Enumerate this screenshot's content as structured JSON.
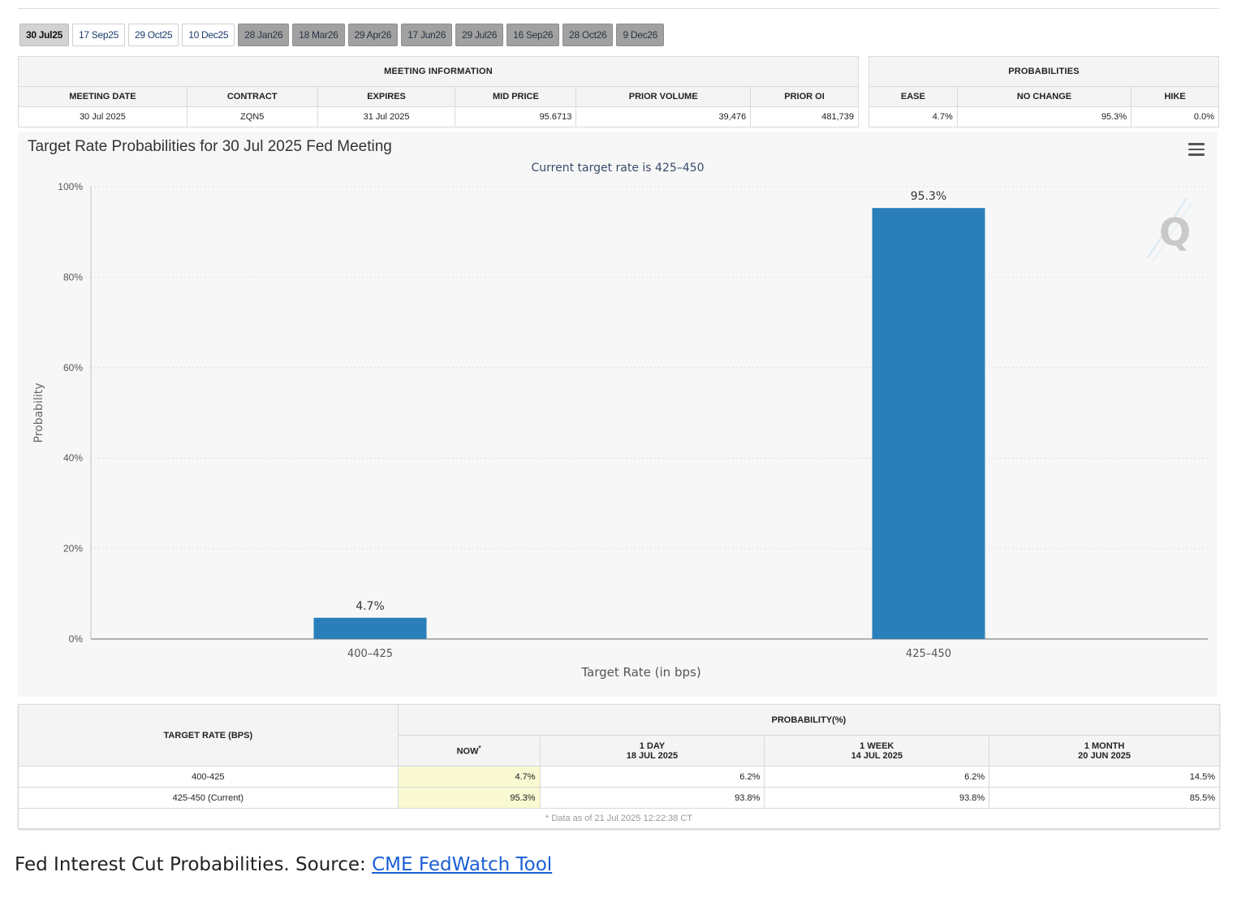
{
  "tabs": [
    {
      "label": "30 Jul25",
      "state": "selected"
    },
    {
      "label": "17 Sep25",
      "state": "light"
    },
    {
      "label": "29 Oct25",
      "state": "light"
    },
    {
      "label": "10 Dec25",
      "state": "light"
    },
    {
      "label": "28 Jan26",
      "state": "dark"
    },
    {
      "label": "18 Mar26",
      "state": "dark"
    },
    {
      "label": "29 Apr26",
      "state": "dark"
    },
    {
      "label": "17 Jun26",
      "state": "dark"
    },
    {
      "label": "29 Jul26",
      "state": "dark"
    },
    {
      "label": "16 Sep26",
      "state": "dark"
    },
    {
      "label": "28 Oct26",
      "state": "dark"
    },
    {
      "label": "9 Dec26",
      "state": "dark"
    }
  ],
  "meeting_info": {
    "heading": "MEETING INFORMATION",
    "columns": [
      "MEETING DATE",
      "CONTRACT",
      "EXPIRES",
      "MID PRICE",
      "PRIOR VOLUME",
      "PRIOR OI"
    ],
    "row": [
      "30 Jul 2025",
      "ZQN5",
      "31 Jul 2025",
      "95.6713",
      "39,476",
      "481,739"
    ]
  },
  "probabilities": {
    "heading": "PROBABILITIES",
    "columns": [
      "EASE",
      "NO CHANGE",
      "HIKE"
    ],
    "row": [
      "4.7%",
      "95.3%",
      "0.0%"
    ]
  },
  "chart": {
    "title": "Target Rate Probabilities for 30 Jul 2025 Fed Meeting",
    "subtitle": "Current target rate is 425–450",
    "menu_icon": "hamburger-menu-icon",
    "watermark_icon": "q-logo-icon",
    "bar_color": "#2a7fba"
  },
  "chart_data": {
    "type": "bar",
    "categories": [
      "400–425",
      "425–450"
    ],
    "values": [
      4.7,
      95.3
    ],
    "value_labels": [
      "4.7%",
      "95.3%"
    ],
    "xlabel": "Target Rate (in bps)",
    "ylabel": "Probability",
    "ylim": [
      0,
      100
    ],
    "yticks": [
      0,
      20,
      40,
      60,
      80,
      100
    ],
    "ytick_labels": [
      "0%",
      "20%",
      "40%",
      "60%",
      "80%",
      "100%"
    ],
    "grid": true
  },
  "rates_table": {
    "target_rate_heading": "TARGET RATE (BPS)",
    "probability_heading": "PROBABILITY(%)",
    "columns": [
      {
        "label": "NOW",
        "marker": "*",
        "date": ""
      },
      {
        "label": "1 DAY",
        "date": "18 JUL 2025"
      },
      {
        "label": "1 WEEK",
        "date": "14 JUL 2025"
      },
      {
        "label": "1 MONTH",
        "date": "20 JUN 2025"
      }
    ],
    "rows": [
      {
        "rate": "400-425",
        "values": [
          "4.7%",
          "6.2%",
          "6.2%",
          "14.5%"
        ]
      },
      {
        "rate": "425-450 (Current)",
        "values": [
          "95.3%",
          "93.8%",
          "93.8%",
          "85.5%"
        ]
      }
    ],
    "footnote": "* Data as of 21 Jul 2025 12:22:38 CT"
  },
  "caption": {
    "text": "Fed Interest Cut Probabilities. Source: ",
    "link_label": "CME FedWatch Tool"
  }
}
